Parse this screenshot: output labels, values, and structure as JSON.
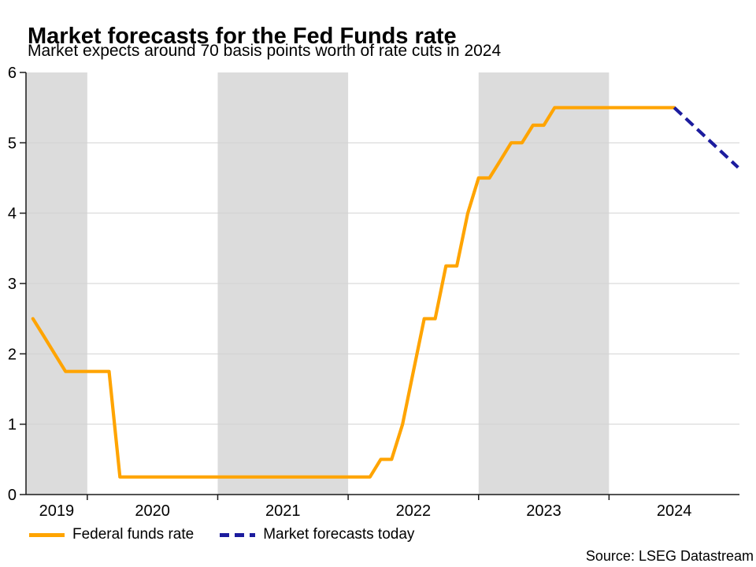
{
  "header": {
    "title": "Market forecasts for the Fed Funds rate",
    "subtitle": "Market expects around 70 basis points worth of rate cuts in 2024"
  },
  "source": {
    "label": "Source: LSEG Datastream"
  },
  "legend": {
    "items": [
      {
        "label": "Federal funds rate",
        "color": "#FFA400",
        "style": "solid"
      },
      {
        "label": "Market forecasts today",
        "color": "#1C1C9E",
        "style": "dashed"
      }
    ]
  },
  "chart_data": {
    "type": "line",
    "title": "Market forecasts for the Fed Funds rate",
    "subtitle": "Market expects around 70 basis points worth of rate cuts in 2024",
    "xlabel": "",
    "ylabel": "",
    "xlim": [
      2019.53,
      2025.0
    ],
    "ylim": [
      0,
      6
    ],
    "yticks": [
      0,
      1,
      2,
      3,
      4,
      5,
      6
    ],
    "gridline_values": [
      1,
      2,
      3,
      4,
      5
    ],
    "xtick_boundaries": [
      2020,
      2021,
      2022,
      2023,
      2024
    ],
    "xtick_labels": [
      {
        "t": 2019.765,
        "label": "2019"
      },
      {
        "t": 2020.5,
        "label": "2020"
      },
      {
        "t": 2021.5,
        "label": "2021"
      },
      {
        "t": 2022.5,
        "label": "2022"
      },
      {
        "t": 2023.5,
        "label": "2023"
      },
      {
        "t": 2024.5,
        "label": "2024"
      }
    ],
    "shaded_bands": [
      [
        2019.53,
        2020
      ],
      [
        2021,
        2022
      ],
      [
        2023,
        2024
      ]
    ],
    "band_color": "#dcdcdc",
    "grid_color": "#d2d2d2",
    "axis_color": "#1a1a1a",
    "legend_position": "bottom-left",
    "grid": "horizontal-only",
    "series": [
      {
        "name": "Federal funds rate",
        "color": "#FFA400",
        "style": "solid",
        "points": [
          [
            2019.583,
            2.5
          ],
          [
            2019.667,
            2.25
          ],
          [
            2019.75,
            2.0
          ],
          [
            2019.833,
            1.75
          ],
          [
            2020.167,
            1.75
          ],
          [
            2020.25,
            0.25
          ],
          [
            2022.167,
            0.25
          ],
          [
            2022.25,
            0.5
          ],
          [
            2022.333,
            0.5
          ],
          [
            2022.417,
            1.0
          ],
          [
            2022.5,
            1.75
          ],
          [
            2022.583,
            2.5
          ],
          [
            2022.667,
            2.5
          ],
          [
            2022.75,
            3.25
          ],
          [
            2022.833,
            3.25
          ],
          [
            2022.917,
            4.0
          ],
          [
            2023.0,
            4.5
          ],
          [
            2023.083,
            4.5
          ],
          [
            2023.167,
            4.75
          ],
          [
            2023.25,
            5.0
          ],
          [
            2023.333,
            5.0
          ],
          [
            2023.417,
            5.25
          ],
          [
            2023.5,
            5.25
          ],
          [
            2023.583,
            5.5
          ],
          [
            2024.5,
            5.5
          ]
        ]
      },
      {
        "name": "Market forecasts today",
        "color": "#1C1C9E",
        "style": "dashed",
        "points": [
          [
            2024.5,
            5.5
          ],
          [
            2024.99,
            4.65
          ]
        ]
      }
    ]
  }
}
